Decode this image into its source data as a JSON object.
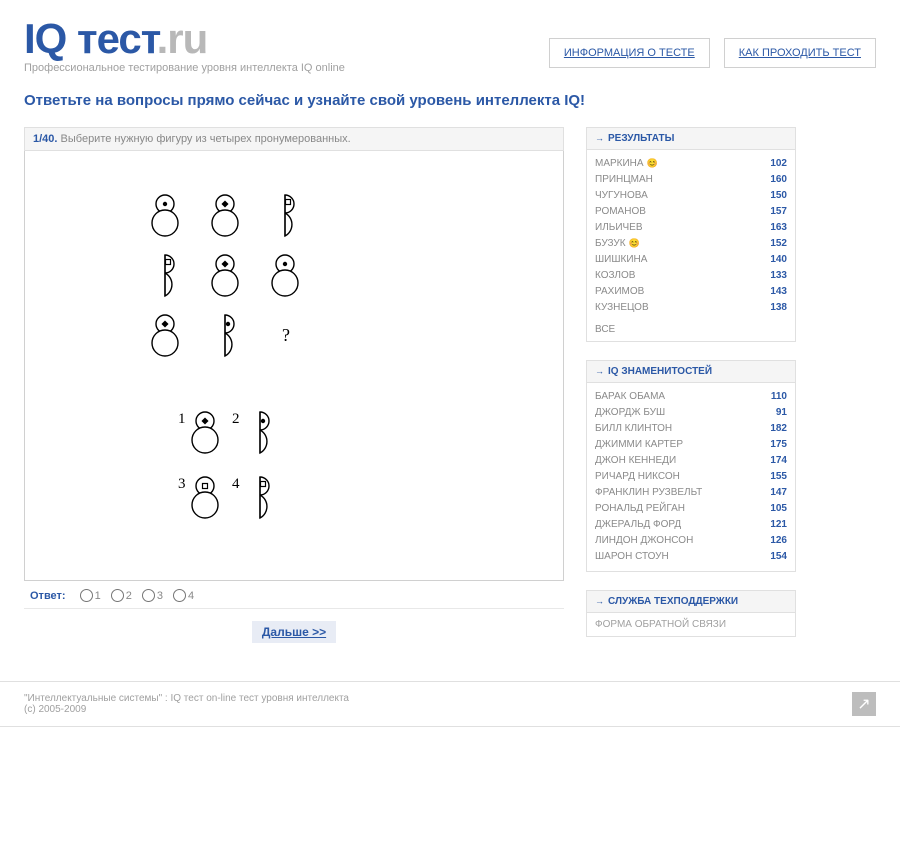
{
  "header": {
    "logo_main": "IQ тест",
    "logo_suffix": ".ru",
    "tagline": "Профессиональное тестирование уровня интеллекта IQ online",
    "links": {
      "info": "ИНФОРМАЦИЯ О ТЕСТЕ",
      "howto": "КАК ПРОХОДИТЬ ТЕСТ"
    }
  },
  "headline": "Ответьте на вопросы прямо сейчас и узнайте свой уровень интеллекта IQ!",
  "question": {
    "number": "1/40.",
    "text": "Выберите нужную фигуру из четырех пронумерованных.",
    "answer_label": "Ответ:",
    "options": [
      "1",
      "2",
      "3",
      "4"
    ],
    "next": "Дальше >>",
    "missing_symbol": "?",
    "opt_labels": {
      "n1": "1",
      "n2": "2",
      "n3": "3",
      "n4": "4"
    }
  },
  "sidebar": {
    "results": {
      "title": "РЕЗУЛЬТАТЫ",
      "rows": [
        {
          "name": "МАРКИНА",
          "score": "102",
          "face": true
        },
        {
          "name": "ПРИНЦМАН",
          "score": "160",
          "face": false
        },
        {
          "name": "ЧУГУНОВА",
          "score": "150",
          "face": false
        },
        {
          "name": "РОМАНОВ",
          "score": "157",
          "face": false
        },
        {
          "name": "ИЛЬИЧЕВ",
          "score": "163",
          "face": false
        },
        {
          "name": "БУЗУК",
          "score": "152",
          "face": true
        },
        {
          "name": "ШИШКИНА",
          "score": "140",
          "face": false
        },
        {
          "name": "КОЗЛОВ",
          "score": "133",
          "face": false
        },
        {
          "name": "РАХИМОВ",
          "score": "143",
          "face": false
        },
        {
          "name": "КУЗНЕЦОВ",
          "score": "138",
          "face": false
        }
      ],
      "all": "ВСЕ"
    },
    "celebs": {
      "title": "IQ ЗНАМЕНИТОСТЕЙ",
      "rows": [
        {
          "name": "БАРАК ОБАМА",
          "score": "110"
        },
        {
          "name": "ДЖОРДЖ БУШ",
          "score": "91"
        },
        {
          "name": "БИЛЛ КЛИНТОН",
          "score": "182"
        },
        {
          "name": "ДЖИММИ КАРТЕР",
          "score": "175"
        },
        {
          "name": "ДЖОН КЕННЕДИ",
          "score": "174"
        },
        {
          "name": "РИЧАРД НИКСОН",
          "score": "155"
        },
        {
          "name": "ФРАНКЛИН РУЗВЕЛЬТ",
          "score": "147"
        },
        {
          "name": "РОНАЛЬД РЕЙГАН",
          "score": "105"
        },
        {
          "name": "ДЖЕРАЛЬД ФОРД",
          "score": "121"
        },
        {
          "name": "ЛИНДОН ДЖОНСОН",
          "score": "126"
        },
        {
          "name": "ШАРОН СТОУН",
          "score": "154"
        }
      ]
    },
    "support": {
      "title": "СЛУЖБА ТЕХПОДДЕРЖКИ",
      "link": "ФОРМА ОБРАТНОЙ СВЯЗИ"
    }
  },
  "footer": {
    "line1": "\"Интеллектуальные системы\" : IQ тест on-line тест уровня интеллекта",
    "line2": "(с) 2005-2009"
  },
  "colors": {
    "blue": "#2b58a6",
    "gray": "#a0a0a0",
    "label_gray": "#8a8a8a",
    "bg_panel": "#f5f5f5",
    "border": "#e0e0e0"
  }
}
